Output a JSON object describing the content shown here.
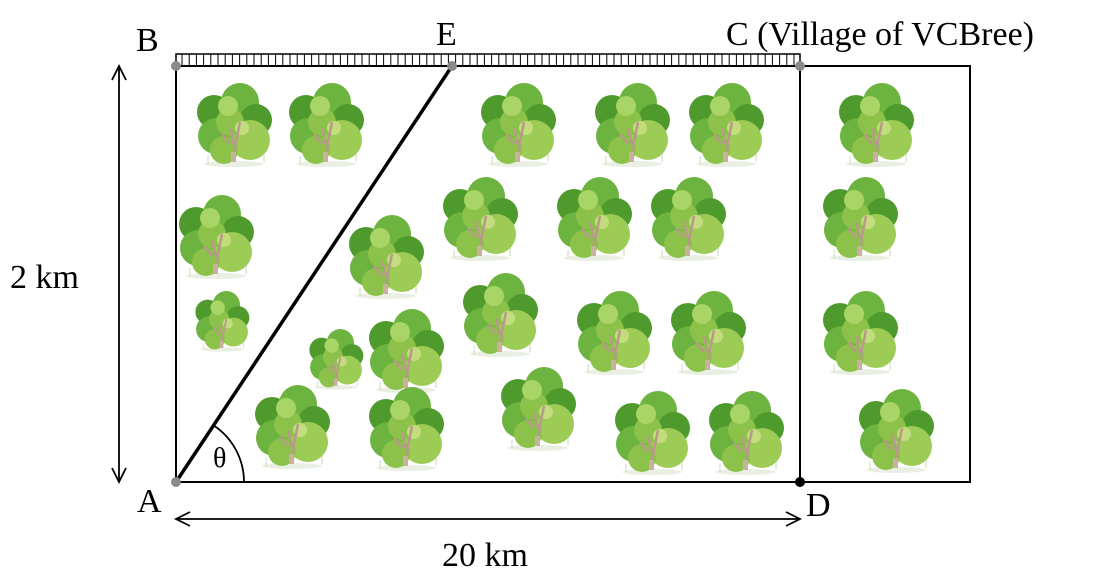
{
  "labels": {
    "B": "B",
    "E": "E",
    "C": "C (Village of VCBree)",
    "A": "A",
    "D": "D",
    "theta": "θ",
    "height": "2 km",
    "width": "20 km"
  },
  "colors": {
    "line": "#000000",
    "point_gray": "#8a8a8a",
    "tree_dark": "#4f9a2c",
    "tree_mid": "#6db33f",
    "tree_light": "#9ccc55",
    "trunk": "#b89a8a"
  },
  "icons": {
    "tree": "tree-icon",
    "road": "road-rail-icon"
  }
}
